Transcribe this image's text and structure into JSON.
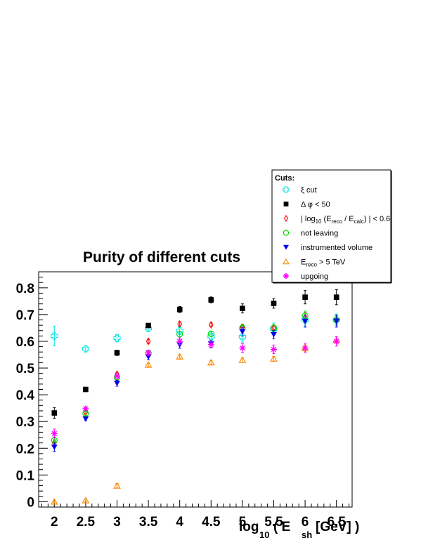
{
  "chart_data": {
    "type": "scatter",
    "title": "Purity of different cuts",
    "xlabel": {
      "prefix": "log",
      "prefix_sub": "10",
      "open": "( E",
      "var_sub": "sh",
      "rest": "[GeV] )"
    },
    "ylabel": "",
    "xlim": [
      1.75,
      6.75
    ],
    "ylim": [
      -0.02,
      0.86
    ],
    "x_ticks": [
      "2",
      "2.5",
      "3",
      "3.5",
      "4",
      "4.5",
      "5",
      "5.5",
      "6",
      "6.5"
    ],
    "y_ticks": [
      "0",
      "0.1",
      "0.2",
      "0.3",
      "0.4",
      "0.5",
      "0.6",
      "0.7",
      "0.8"
    ],
    "grid": false,
    "legend": {
      "header": "Cuts:",
      "placement": "top-right",
      "entries": [
        {
          "series": 0,
          "text": "ξ cut"
        },
        {
          "series": 1,
          "text": "Δ φ < 50"
        },
        {
          "series": 2,
          "text": "| log",
          "parts": [
            "| log",
            "10",
            " (E",
            "reco",
            " / E",
            "calc",
            ") | < 0.6"
          ]
        },
        {
          "series": 3,
          "text": "not leaving"
        },
        {
          "series": 4,
          "text": "instrumented volume"
        },
        {
          "series": 5,
          "text": "E",
          "parts": [
            "E",
            "reco",
            " > 5 TeV"
          ]
        },
        {
          "series": 6,
          "text": "upgoing"
        }
      ]
    },
    "x": [
      2,
      2.5,
      3,
      3.5,
      4,
      4.5,
      5,
      5.5,
      6,
      6.5
    ],
    "series": [
      {
        "name": "ξ cut",
        "marker": "open-cross",
        "color": "#00e5e5",
        "values": [
          0.62,
          0.572,
          0.612,
          0.648,
          0.64,
          0.618,
          0.617,
          0.646,
          0.68,
          0.68
        ],
        "errors": [
          0.037,
          0.012,
          0.014,
          0.012,
          0.015,
          0.017,
          0.02,
          0.022,
          0.025,
          0.022
        ]
      },
      {
        "name": "Δ φ < 50",
        "marker": "filled-square",
        "color": "#000000",
        "values": [
          0.332,
          0.42,
          0.557,
          0.659,
          0.719,
          0.755,
          0.723,
          0.742,
          0.765,
          0.765
        ],
        "errors": [
          0.02,
          0.007,
          0.01,
          0.008,
          0.011,
          0.011,
          0.017,
          0.018,
          0.025,
          0.028
        ]
      },
      {
        "name": "| log10 (Ereco / Ecalc) | < 0.6",
        "marker": "open-diamond",
        "color": "#ff0000",
        "values": [
          0.22,
          0.335,
          0.477,
          0.6,
          0.665,
          0.662,
          0.652,
          0.65,
          0.69,
          0.68
        ],
        "errors": [
          0.012,
          0.006,
          0.008,
          0.008,
          0.008,
          0.008,
          0.012,
          0.012,
          0.018,
          0.018
        ]
      },
      {
        "name": "not leaving",
        "marker": "open-circle",
        "color": "#00dd00",
        "values": [
          0.23,
          0.33,
          0.465,
          0.556,
          0.627,
          0.628,
          0.65,
          0.65,
          0.695,
          0.68
        ],
        "errors": [
          0.012,
          0.006,
          0.008,
          0.008,
          0.01,
          0.01,
          0.012,
          0.012,
          0.018,
          0.018
        ]
      },
      {
        "name": "instrumented volume",
        "marker": "filled-triangle-down",
        "color": "#0000ee",
        "values": [
          0.204,
          0.31,
          0.443,
          0.542,
          0.587,
          0.59,
          0.636,
          0.625,
          0.675,
          0.675
        ],
        "errors": [
          0.016,
          0.007,
          0.011,
          0.011,
          0.013,
          0.013,
          0.016,
          0.016,
          0.022,
          0.022
        ]
      },
      {
        "name": "Ereco > 5 TeV",
        "marker": "open-triangle-up",
        "color": "#ff8800",
        "values": [
          0.0,
          0.005,
          0.06,
          0.512,
          0.543,
          0.521,
          0.53,
          0.535,
          0.575,
          0.605
        ],
        "errors": [
          0.004,
          0.004,
          0.008,
          0.007,
          0.007,
          0.007,
          0.009,
          0.009,
          0.012,
          0.012
        ]
      },
      {
        "name": "upgoing",
        "marker": "star",
        "color": "#ff00ff",
        "values": [
          0.255,
          0.348,
          0.47,
          0.557,
          0.6,
          0.588,
          0.575,
          0.57,
          0.575,
          0.6
        ],
        "errors": [
          0.017,
          0.006,
          0.01,
          0.01,
          0.013,
          0.013,
          0.016,
          0.016,
          0.018,
          0.018
        ]
      }
    ]
  }
}
